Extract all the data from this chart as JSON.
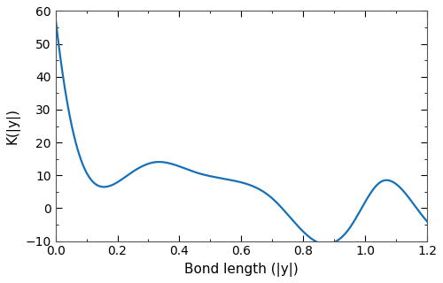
{
  "title": "",
  "xlabel": "Bond length (|y|)",
  "ylabel": "K(|y|)",
  "xlim": [
    0,
    1.2
  ],
  "ylim": [
    -10,
    60
  ],
  "xticks": [
    0,
    0.2,
    0.4,
    0.6,
    0.8,
    1.0,
    1.2
  ],
  "yticks": [
    -10,
    0,
    10,
    20,
    30,
    40,
    50,
    60
  ],
  "line_color": "#1570b8",
  "line_width": 1.6,
  "background_color": "#ffffff"
}
